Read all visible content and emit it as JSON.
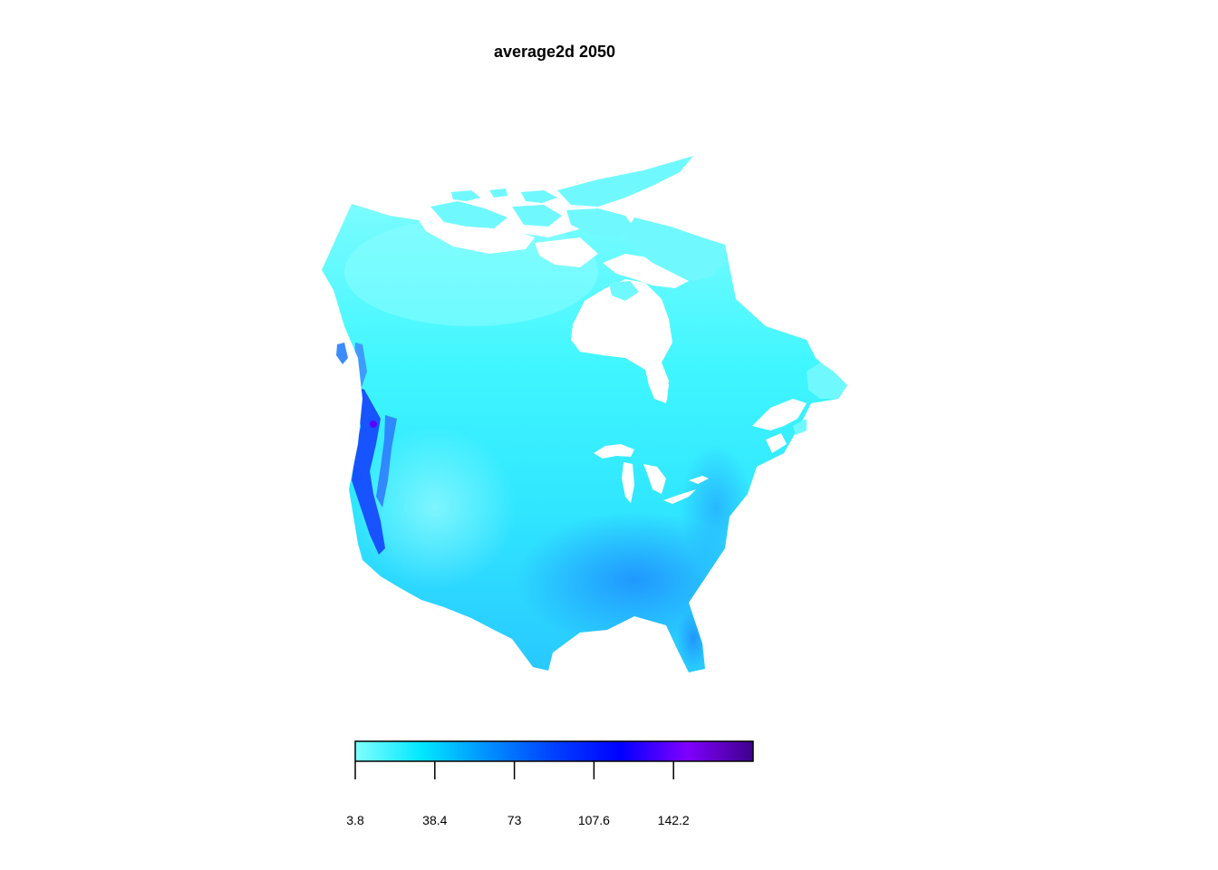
{
  "title": "average2d 2050",
  "legend": {
    "min": 3.8,
    "max": 176.8,
    "tick_values": [
      3.8,
      38.4,
      73,
      107.6,
      142.2
    ],
    "tick_labels": [
      "3.8",
      "38.4",
      "73",
      "107.6",
      "142.2"
    ],
    "color_stops": [
      "#80ffff",
      "#00e8ff",
      "#0090ff",
      "#0040ff",
      "#0000ff",
      "#8000ff",
      "#40008c"
    ]
  },
  "colors": {
    "land_base": "#4ff5ff",
    "land_north": "#6ffcff",
    "west_coast": "#1a3cff",
    "southeast": "#1aa0ff"
  }
}
